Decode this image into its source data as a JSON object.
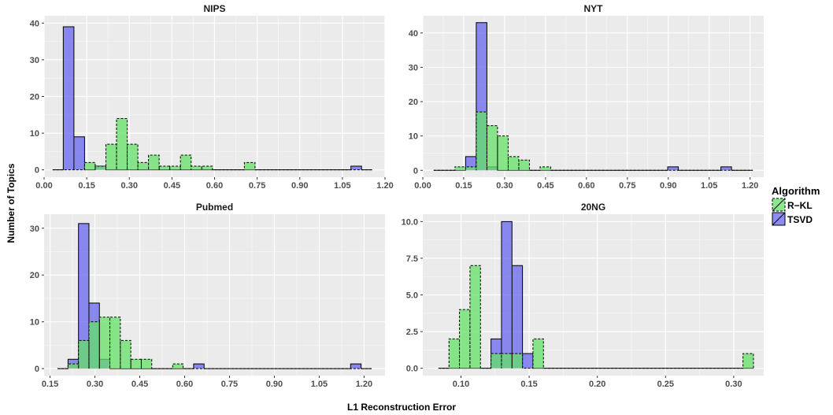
{
  "chart_data": {
    "type": "histogram",
    "xlabel": "L1 Reconstruction Error",
    "ylabel": "Number of Topics",
    "legend": {
      "title": "Algorithm",
      "placement": "right",
      "entries": [
        {
          "name": "R−KL",
          "color": "#66e066",
          "line": "dashed"
        },
        {
          "name": "TSVD",
          "color": "#6666ee",
          "line": "solid"
        }
      ]
    },
    "colors": {
      "panel_bg": "#ebebeb",
      "grid": "#ffffff",
      "rkl": "#66e066",
      "tsvd": "#6666ee"
    },
    "panels": [
      {
        "title": "NIPS",
        "xlim": [
          0,
          1.2
        ],
        "ylim": [
          -2,
          42
        ],
        "xticks": [
          "0.00",
          "0.15",
          "0.30",
          "0.45",
          "0.60",
          "0.75",
          "0.90",
          "1.05",
          "1.20"
        ],
        "xtick_values": [
          0,
          0.15,
          0.3,
          0.45,
          0.6,
          0.75,
          0.9,
          1.05,
          1.2
        ],
        "yticks": [
          "0",
          "10",
          "20",
          "30",
          "40"
        ],
        "ytick_values": [
          0,
          10,
          20,
          30,
          40
        ],
        "bin_start": 0.03,
        "bin_width": 0.0375,
        "nbins": 30,
        "series": [
          {
            "name": "R−KL",
            "counts": [
              0,
              0,
              0,
              2,
              1,
              7,
              14,
              7,
              2,
              4,
              1,
              1,
              4,
              1,
              1,
              0,
              0,
              0,
              2,
              0,
              0,
              0,
              0,
              0,
              0,
              0,
              0,
              0,
              0,
              0
            ]
          },
          {
            "name": "TSVD",
            "counts": [
              0,
              39,
              9,
              0,
              1,
              0,
              0,
              0,
              0,
              0,
              0,
              0,
              0,
              0,
              0,
              0,
              0,
              0,
              0,
              0,
              0,
              0,
              0,
              0,
              0,
              0,
              0,
              0,
              1,
              0
            ]
          }
        ]
      },
      {
        "title": "NYT",
        "xlim": [
          0,
          1.25
        ],
        "ylim": [
          -2,
          45
        ],
        "xticks": [
          "0.00",
          "0.15",
          "0.30",
          "0.45",
          "0.60",
          "0.75",
          "0.90",
          "1.05",
          "1.20"
        ],
        "xtick_values": [
          0,
          0.15,
          0.3,
          0.45,
          0.6,
          0.75,
          0.9,
          1.05,
          1.2
        ],
        "yticks": [
          "0",
          "10",
          "20",
          "30",
          "40"
        ],
        "ytick_values": [
          0,
          10,
          20,
          30,
          40
        ],
        "bin_start": 0.04,
        "bin_width": 0.039,
        "nbins": 30,
        "series": [
          {
            "name": "R−KL",
            "counts": [
              0,
              0,
              1,
              1,
              17,
              13,
              10,
              4,
              3,
              0,
              1,
              0,
              0,
              0,
              0,
              0,
              0,
              0,
              0,
              0,
              0,
              0,
              0,
              0,
              0,
              0,
              0,
              0,
              0,
              0
            ]
          },
          {
            "name": "TSVD",
            "counts": [
              0,
              0,
              0,
              4,
              43,
              1,
              0,
              0,
              0,
              0,
              0,
              0,
              0,
              0,
              0,
              0,
              0,
              0,
              0,
              0,
              0,
              0,
              1,
              0,
              0,
              0,
              0,
              1,
              0,
              0
            ]
          }
        ]
      },
      {
        "title": "Pubmed",
        "xlim": [
          0.13,
          1.27
        ],
        "ylim": [
          -1.5,
          33
        ],
        "xticks": [
          "0.15",
          "0.30",
          "0.45",
          "0.60",
          "0.75",
          "0.90",
          "1.05",
          "1.20"
        ],
        "xtick_values": [
          0.15,
          0.3,
          0.45,
          0.6,
          0.75,
          0.9,
          1.05,
          1.2
        ],
        "yticks": [
          "0",
          "10",
          "20",
          "30"
        ],
        "ytick_values": [
          0,
          10,
          20,
          30
        ],
        "bin_start": 0.175,
        "bin_width": 0.035,
        "nbins": 30,
        "series": [
          {
            "name": "R−KL",
            "counts": [
              0,
              1,
              6,
              10,
              11,
              11,
              6,
              2,
              2,
              0,
              0,
              1,
              0,
              0,
              0,
              0,
              0,
              0,
              0,
              0,
              0,
              0,
              0,
              0,
              0,
              0,
              0,
              0,
              0,
              0
            ]
          },
          {
            "name": "TSVD",
            "counts": [
              0,
              2,
              31,
              14,
              2,
              0,
              0,
              0,
              0,
              0,
              0,
              0,
              0,
              1,
              0,
              0,
              0,
              0,
              0,
              0,
              0,
              0,
              0,
              0,
              0,
              0,
              0,
              0,
              1,
              0
            ]
          }
        ]
      },
      {
        "title": "20NG",
        "xlim": [
          0.072,
          0.322
        ],
        "ylim": [
          -0.5,
          10.5
        ],
        "xticks": [
          "0.10",
          "0.15",
          "0.20",
          "0.25",
          "0.30"
        ],
        "xtick_values": [
          0.1,
          0.15,
          0.2,
          0.25,
          0.3
        ],
        "yticks": [
          "0.0",
          "2.5",
          "5.0",
          "7.5",
          "10.0"
        ],
        "ytick_values": [
          0,
          2.5,
          5,
          7.5,
          10
        ],
        "bin_start": 0.0835,
        "bin_width": 0.0077,
        "nbins": 30,
        "series": [
          {
            "name": "R−KL",
            "counts": [
              0,
              2,
              4,
              7,
              0,
              1,
              1,
              1,
              0,
              2,
              0,
              0,
              0,
              0,
              0,
              0,
              0,
              0,
              0,
              0,
              0,
              0,
              0,
              0,
              0,
              0,
              0,
              0,
              0,
              1
            ]
          },
          {
            "name": "TSVD",
            "counts": [
              0,
              0,
              0,
              0,
              0,
              2,
              10,
              7,
              1,
              0,
              0,
              0,
              0,
              0,
              0,
              0,
              0,
              0,
              0,
              0,
              0,
              0,
              0,
              0,
              0,
              0,
              0,
              0,
              0,
              0
            ]
          }
        ]
      }
    ]
  }
}
